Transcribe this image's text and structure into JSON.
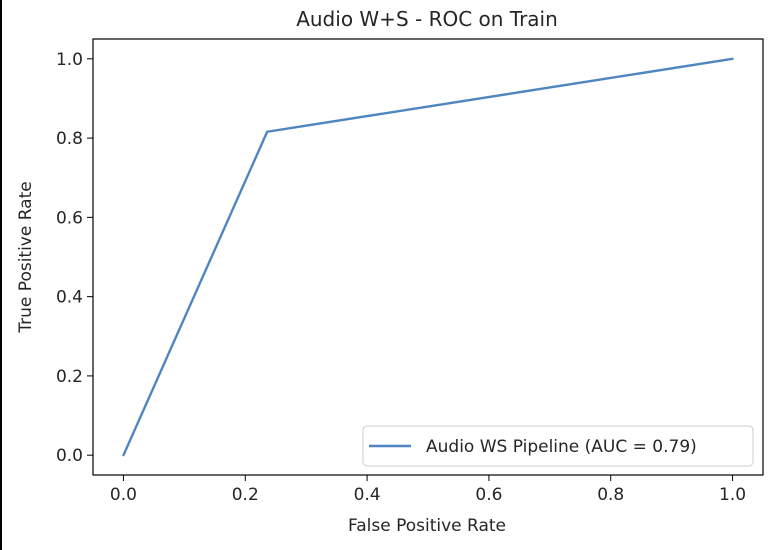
{
  "chart_data": {
    "type": "line",
    "title": "Audio W+S - ROC on Train",
    "xlabel": "False Positive Rate",
    "ylabel": "True Positive Rate",
    "xlim": [
      -0.05,
      1.05
    ],
    "ylim": [
      -0.05,
      1.05
    ],
    "x_ticks": [
      "0.0",
      "0.2",
      "0.4",
      "0.6",
      "0.8",
      "1.0"
    ],
    "y_ticks": [
      "0.0",
      "0.2",
      "0.4",
      "0.6",
      "0.8",
      "1.0"
    ],
    "grid": false,
    "legend_position": "lower-right",
    "series": [
      {
        "name": "Audio WS Pipeline (AUC = 0.79)",
        "color": "#4f86bf",
        "x": [
          0.0,
          0.236,
          1.0
        ],
        "y": [
          0.0,
          0.816,
          1.0
        ]
      }
    ]
  }
}
